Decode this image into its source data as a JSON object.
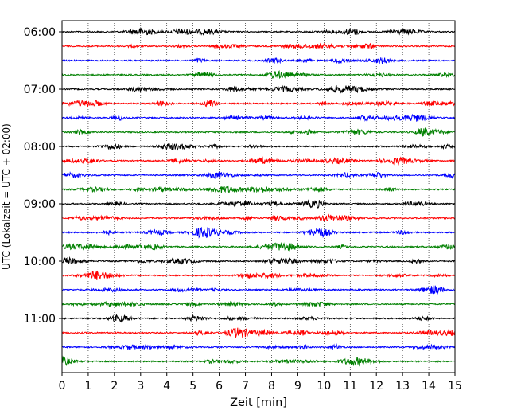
{
  "chart_data": {
    "type": "line",
    "title": "",
    "xlabel": "Zeit  [min]",
    "ylabel": "UTC (Lokalzeit = UTC + 02:00)",
    "xlim": [
      0,
      15
    ],
    "x_ticks": [
      "0",
      "1",
      "2",
      "3",
      "4",
      "5",
      "6",
      "7",
      "8",
      "9",
      "10",
      "11",
      "12",
      "13",
      "14",
      "15"
    ],
    "y_ticks": [
      "06:00",
      "07:00",
      "08:00",
      "09:00",
      "10:00",
      "11:00"
    ],
    "traces_per_hour": 4,
    "trace_count": 24,
    "trace_colors": [
      "#000000",
      "#ff0000",
      "#0000ff",
      "#008000"
    ],
    "vertical_grid": true,
    "grid_style": "dotted"
  }
}
